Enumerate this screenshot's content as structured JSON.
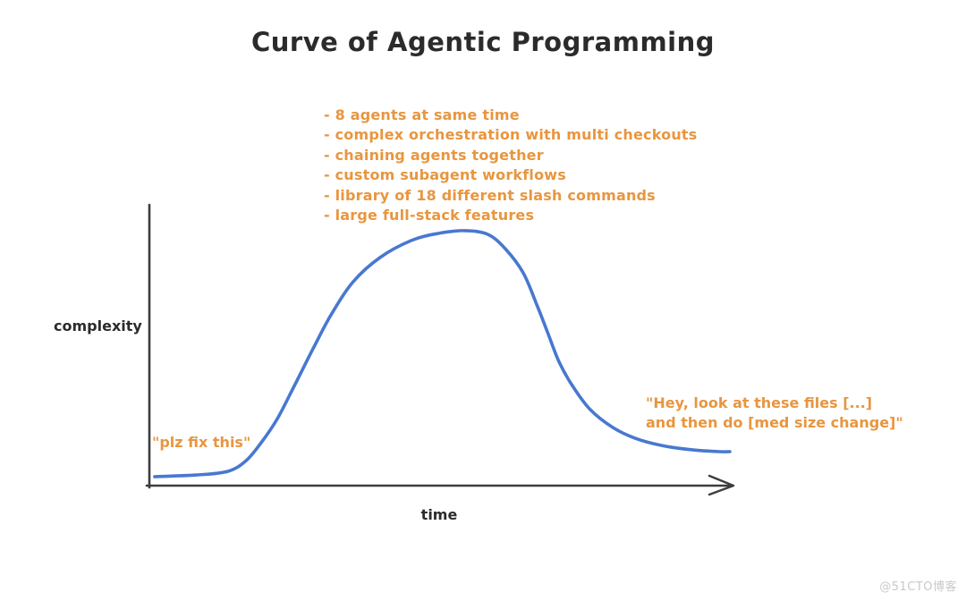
{
  "page": {
    "background": "#ffffff",
    "watermark": "@51CTO博客"
  },
  "colors": {
    "ink": "#2b2b2b",
    "accent_orange": "#e8963f",
    "curve_blue": "#4878d0",
    "axis": "#3d3d3d",
    "watermark_gray": "#c9c9c9"
  },
  "chart_data": {
    "type": "line",
    "title": "Curve of Agentic Programming",
    "xlabel": "time",
    "ylabel": "complexity",
    "grid": false,
    "legend_position": "none",
    "axes": {
      "x_arrowhead": true,
      "tick_labels": "none",
      "style": "hand-drawn"
    },
    "xlim": [
      0,
      100
    ],
    "ylim": [
      0,
      100
    ],
    "series": [
      {
        "name": "complexity-over-time",
        "color": "#4878d0",
        "points": [
          [
            0.9,
            3.2
          ],
          [
            8.1,
            3.8
          ],
          [
            13.5,
            5.1
          ],
          [
            16.6,
            8.9
          ],
          [
            19.2,
            15.3
          ],
          [
            22.0,
            23.9
          ],
          [
            25.0,
            36.0
          ],
          [
            28.1,
            48.7
          ],
          [
            31.2,
            60.8
          ],
          [
            35.0,
            72.6
          ],
          [
            39.6,
            81.2
          ],
          [
            45.0,
            87.3
          ],
          [
            49.6,
            89.8
          ],
          [
            54.2,
            90.8
          ],
          [
            58.1,
            89.5
          ],
          [
            61.1,
            84.4
          ],
          [
            64.2,
            75.8
          ],
          [
            66.5,
            64.6
          ],
          [
            68.4,
            54.5
          ],
          [
            70.4,
            43.9
          ],
          [
            72.7,
            35.4
          ],
          [
            75.7,
            27.1
          ],
          [
            79.6,
            20.7
          ],
          [
            83.4,
            16.9
          ],
          [
            88.0,
            14.3
          ],
          [
            93.4,
            12.7
          ],
          [
            98.0,
            12.1
          ],
          [
            99.7,
            12.1
          ]
        ]
      }
    ],
    "annotations": {
      "peak_bullets": [
        "- 8 agents at same time",
        "- complex orchestration with multi checkouts",
        "- chaining agents together",
        "- custom subagent workflows",
        "- library of 18 different slash commands",
        "- large full-stack features"
      ],
      "start_label": "\"plz fix this\"",
      "end_label_line1": "\"Hey, look at these files [...]",
      "end_label_line2": "and then do [med size change]\""
    }
  }
}
